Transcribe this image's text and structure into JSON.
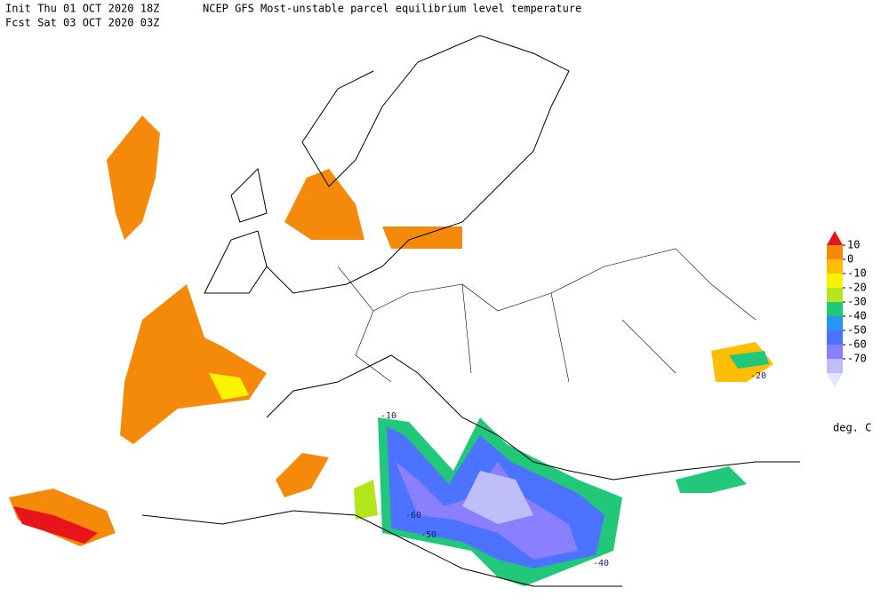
{
  "header": {
    "init": "Init  Thu 01 OCT 2020 18Z",
    "title": "NCEP GFS Most-unstable parcel equilibrium level temperature",
    "fcst": "Fcst Sat 03 OCT 2020 03Z"
  },
  "legend": {
    "levels": [
      10,
      0,
      -10,
      -20,
      -30,
      -40,
      -50,
      -60,
      -70
    ],
    "colors": [
      "#e8141c",
      "#f58a0a",
      "#ffbe00",
      "#f8f400",
      "#b4e61e",
      "#22c87a",
      "#2896f0",
      "#4b73ff",
      "#8a80ff",
      "#c0bef8",
      "#e4e4fc"
    ],
    "unit": "deg. C"
  },
  "contour_labels": [
    -60,
    -50,
    -40,
    -20,
    -10
  ]
}
